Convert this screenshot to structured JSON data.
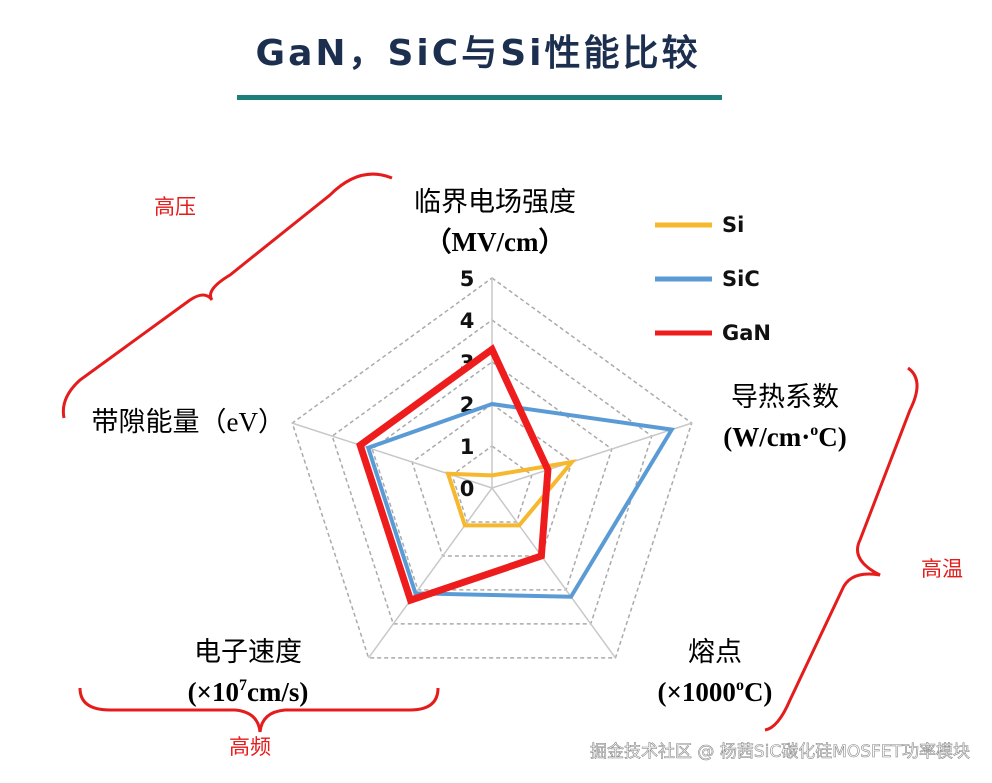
{
  "chart_data": {
    "type": "radar",
    "title": "GaN，SiC与Si性能比较",
    "categories": [
      "临界电场强度",
      "导热系数",
      "熔点",
      "电子速度",
      "带隙能量"
    ],
    "units": [
      [
        "（MV/cm）"
      ],
      [
        "(W/cm·",
        "o",
        "C)"
      ],
      [
        "(×1000",
        "o",
        "C)"
      ],
      [
        "(×10",
        "7",
        "cm/s)"
      ],
      [
        "（eV）"
      ]
    ],
    "rlim": [
      0,
      5
    ],
    "rticks": [
      0,
      1,
      2,
      3,
      4,
      5
    ],
    "grid": true,
    "series": [
      {
        "name": "Si",
        "color": "#f5b82e",
        "values": [
          0.3,
          2.0,
          1.1,
          1.1,
          1.1
        ]
      },
      {
        "name": "SiC",
        "color": "#5b9bd5",
        "values": [
          2.0,
          4.5,
          3.2,
          3.1,
          3.1
        ]
      },
      {
        "name": "GaN",
        "color": "#ee1c1c",
        "values": [
          3.3,
          1.4,
          2.0,
          3.3,
          3.3
        ]
      }
    ],
    "annotations": [
      "高压",
      "高温",
      "高频"
    ],
    "watermark": "掘金技术社区 @ 杨茜SiC碳化硅MOSFET功率模块"
  }
}
